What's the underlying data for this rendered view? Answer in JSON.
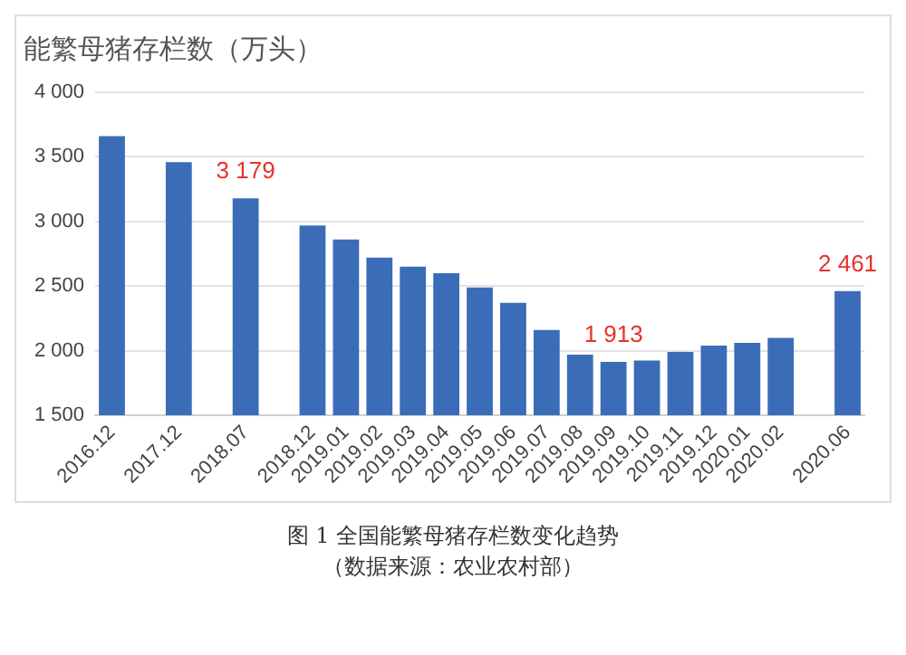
{
  "chart_data": {
    "type": "bar",
    "title": "能繁母猪存栏数（万头）",
    "categories": [
      "2016.12",
      null,
      "2017.12",
      null,
      "2018.07",
      null,
      "2018.12",
      "2019.01",
      "2019.02",
      "2019.03",
      "2019.04",
      "2019.05",
      "2019.06",
      "2019.07",
      "2019.08",
      "2019.09",
      "2019.10",
      "2019.11",
      "2019.12",
      "2020.01",
      "2020.02",
      null,
      "2020.06"
    ],
    "values": [
      3660,
      null,
      3460,
      null,
      3179,
      null,
      2970,
      2860,
      2720,
      2650,
      2600,
      2490,
      2370,
      2160,
      1970,
      1913,
      1925,
      1990,
      2040,
      2060,
      2100,
      null,
      2461
    ],
    "value_labels": [
      null,
      null,
      null,
      null,
      "3 179",
      null,
      null,
      null,
      null,
      null,
      null,
      null,
      null,
      null,
      null,
      "1 913",
      null,
      null,
      null,
      null,
      null,
      null,
      "2 461"
    ],
    "color": "#3b6cb7",
    "ylim": [
      1500,
      4000
    ],
    "yticks": [
      {
        "value": 1500,
        "label": "1 500"
      },
      {
        "value": 2000,
        "label": "2 000"
      },
      {
        "value": 2500,
        "label": "2 500"
      },
      {
        "value": 3000,
        "label": "3 000"
      },
      {
        "value": 3500,
        "label": "3 500"
      },
      {
        "value": 4000,
        "label": "4 000"
      }
    ],
    "grid": "y",
    "annotations": [
      "图 1  全国能繁母猪存栏数变化趋势",
      "（数据来源：农业农村部）"
    ]
  }
}
